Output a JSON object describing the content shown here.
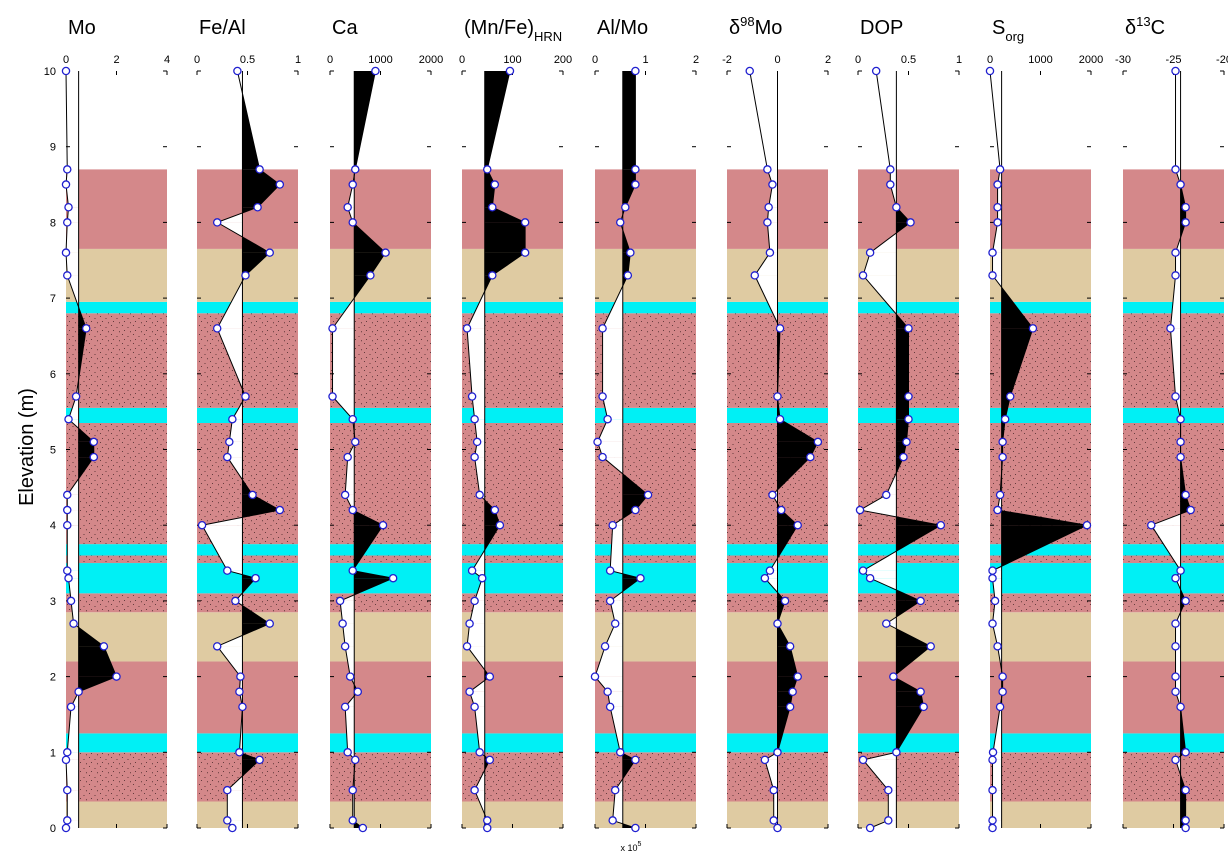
{
  "chart_data": {
    "type": "line",
    "ylabel": "Elevation (m)",
    "ylim": [
      0,
      10
    ],
    "yticks": [
      "0",
      "1",
      "2",
      "3",
      "4",
      "5",
      "6",
      "7",
      "8",
      "9",
      "10"
    ],
    "elevations": [
      0.0,
      0.1,
      0.5,
      0.9,
      1.0,
      1.6,
      1.8,
      2.0,
      2.4,
      2.7,
      3.0,
      3.3,
      3.4,
      4.0,
      4.2,
      4.4,
      4.9,
      5.1,
      5.4,
      5.7,
      6.6,
      7.3,
      7.6,
      8.0,
      8.2,
      8.5,
      8.7,
      10.0
    ],
    "colors": {
      "background": "#ffffff",
      "mauve": "#d4888a",
      "tan": "#dfcba2",
      "cyan": "#00f0f5",
      "marker_edge": "#2020d0",
      "fill": "#000000",
      "dots": "#4a2a2a"
    },
    "strata": [
      {
        "type": "tan",
        "from": 0.0,
        "to": 0.35
      },
      {
        "type": "mauve",
        "from": 0.35,
        "to": 1.0,
        "dotted": true
      },
      {
        "type": "cyan",
        "from": 1.0,
        "to": 1.25
      },
      {
        "type": "mauve",
        "from": 1.25,
        "to": 2.2
      },
      {
        "type": "tan",
        "from": 2.2,
        "to": 2.85
      },
      {
        "type": "mauve",
        "from": 2.85,
        "to": 3.1,
        "dotted": true
      },
      {
        "type": "cyan",
        "from": 3.1,
        "to": 3.5
      },
      {
        "type": "mauve",
        "from": 3.5,
        "to": 3.6,
        "dotted": true
      },
      {
        "type": "cyan",
        "from": 3.6,
        "to": 3.75
      },
      {
        "type": "mauve",
        "from": 3.75,
        "to": 5.35,
        "dotted": true
      },
      {
        "type": "cyan",
        "from": 5.35,
        "to": 5.55
      },
      {
        "type": "mauve",
        "from": 5.55,
        "to": 6.8,
        "dotted": true
      },
      {
        "type": "cyan",
        "from": 6.8,
        "to": 6.95
      },
      {
        "type": "tan",
        "from": 6.95,
        "to": 7.65
      },
      {
        "type": "mauve",
        "from": 7.65,
        "to": 8.7
      }
    ],
    "panels": [
      {
        "title": "Mo",
        "sub": "",
        "xticks": [
          "0",
          "2",
          "4"
        ],
        "xlim": [
          0,
          4
        ],
        "baseline": 0.5,
        "values": [
          0.0,
          0.05,
          0.05,
          0.0,
          0.05,
          0.2,
          0.5,
          2.0,
          1.5,
          0.3,
          0.2,
          0.1,
          0.05,
          0.05,
          0.05,
          0.05,
          1.1,
          1.1,
          0.1,
          0.4,
          0.8,
          0.05,
          0.0,
          0.05,
          0.1,
          0.0,
          0.05,
          0.0
        ]
      },
      {
        "title": "Fe/Al",
        "sub": "",
        "xticks": [
          "0",
          "0.5",
          "1"
        ],
        "xlim": [
          0,
          1
        ],
        "baseline": 0.45,
        "values": [
          0.35,
          0.3,
          0.3,
          0.62,
          0.42,
          0.45,
          0.42,
          0.43,
          0.2,
          0.72,
          0.38,
          0.58,
          0.3,
          0.05,
          0.82,
          0.55,
          0.3,
          0.32,
          0.35,
          0.48,
          0.2,
          0.48,
          0.72,
          0.2,
          0.6,
          0.82,
          0.62,
          0.4
        ]
      },
      {
        "title": "Ca",
        "sub": "",
        "xticks": [
          "0",
          "1000",
          "2000"
        ],
        "xlim": [
          0,
          2000
        ],
        "baseline": 480,
        "values": [
          650,
          450,
          450,
          500,
          350,
          300,
          550,
          400,
          300,
          250,
          200,
          1250,
          450,
          1050,
          450,
          300,
          350,
          500,
          450,
          50,
          50,
          800,
          1100,
          450,
          350,
          450,
          500,
          900
        ]
      },
      {
        "title": "(Mn/Fe)",
        "sub": "HRN",
        "xticks": [
          "0",
          "100",
          "200"
        ],
        "xlim": [
          0,
          200
        ],
        "baseline": 45,
        "values": [
          50,
          50,
          25,
          55,
          35,
          25,
          15,
          55,
          10,
          15,
          25,
          40,
          20,
          75,
          65,
          35,
          25,
          30,
          25,
          20,
          10,
          60,
          125,
          125,
          60,
          65,
          50,
          95
        ]
      },
      {
        "title": "Al/Mo",
        "sub": "",
        "xticks": [
          "0",
          "1",
          "2"
        ],
        "xlim": [
          0,
          2
        ],
        "baseline": 0.55,
        "values": [
          0.8,
          0.35,
          0.4,
          0.8,
          0.5,
          0.3,
          0.25,
          0.0,
          0.2,
          0.4,
          0.3,
          0.9,
          0.3,
          0.35,
          0.8,
          1.05,
          0.15,
          0.05,
          0.25,
          0.15,
          0.15,
          0.65,
          0.7,
          0.5,
          0.6,
          0.8,
          0.8,
          0.8
        ]
      },
      {
        "title": "δ98Mo",
        "sub": "",
        "xticks": [
          "-2",
          "0",
          "2"
        ],
        "xlim": [
          -2,
          2
        ],
        "baseline": 0.0,
        "values": [
          0.0,
          -0.15,
          -0.15,
          -0.5,
          0.0,
          0.5,
          0.6,
          0.8,
          0.5,
          0.0,
          0.3,
          -0.5,
          -0.3,
          0.8,
          0.15,
          -0.2,
          1.3,
          1.6,
          0.1,
          0.0,
          0.1,
          -0.9,
          -0.3,
          -0.4,
          -0.35,
          -0.2,
          -0.4,
          -1.1
        ]
      },
      {
        "title": "DOP",
        "sub": "",
        "xticks": [
          "0",
          "0.5",
          "1"
        ],
        "xlim": [
          0,
          1
        ],
        "baseline": 0.38,
        "values": [
          0.12,
          0.3,
          0.3,
          0.05,
          0.38,
          0.65,
          0.62,
          0.35,
          0.72,
          0.28,
          0.62,
          0.12,
          0.05,
          0.82,
          0.02,
          0.28,
          0.45,
          0.48,
          0.5,
          0.5,
          0.5,
          0.05,
          0.12,
          0.52,
          0.38,
          0.32,
          0.32,
          0.18
        ]
      },
      {
        "title": "S",
        "sub": "org",
        "xticks": [
          "0",
          "1000",
          "2000"
        ],
        "xlim": [
          0,
          2000
        ],
        "baseline": 230,
        "values": [
          50,
          50,
          50,
          50,
          60,
          200,
          250,
          250,
          150,
          50,
          100,
          50,
          50,
          1920,
          150,
          200,
          250,
          250,
          300,
          400,
          850,
          50,
          50,
          150,
          150,
          150,
          200,
          0
        ]
      },
      {
        "title": "δ13C",
        "sub": "",
        "xticks": [
          "-30",
          "-25",
          "-20"
        ],
        "xlim": [
          -30,
          -20
        ],
        "baseline": -24.3,
        "values": [
          -23.8,
          -23.8,
          -23.8,
          -24.8,
          -23.8,
          -24.3,
          -24.8,
          -24.8,
          -24.8,
          -24.8,
          -23.8,
          -24.8,
          -24.3,
          -27.2,
          -23.3,
          -23.8,
          -24.3,
          -24.3,
          -24.3,
          -24.8,
          -25.3,
          -24.8,
          -24.8,
          -23.8,
          -23.8,
          -24.3,
          -24.8,
          -24.8
        ]
      }
    ],
    "annotation": "x 10",
    "annotation_exp": "5"
  }
}
